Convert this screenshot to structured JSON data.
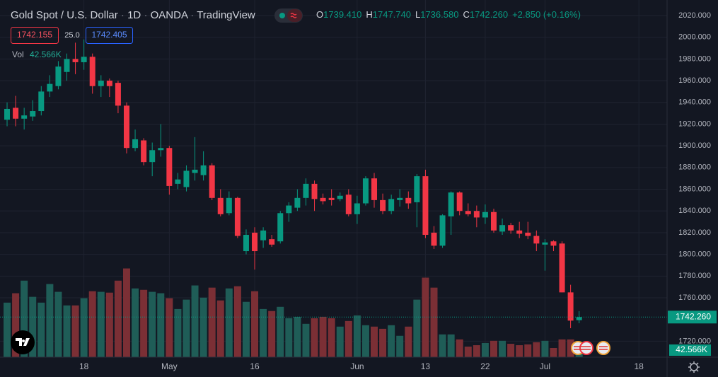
{
  "header": {
    "symbol": "Gold Spot / U.S. Dollar",
    "interval": "1D",
    "exchange": "OANDA",
    "source": "TradingView"
  },
  "ohlc_legend": [
    {
      "label": "O",
      "value": "1739.410"
    },
    {
      "label": "H",
      "value": "1747.740"
    },
    {
      "label": "L",
      "value": "1736.580"
    },
    {
      "label": "C",
      "value": "1742.260"
    }
  ],
  "change": "+2.850 (+0.16%)",
  "quote": {
    "bid": "1742.155",
    "spread": "25.0",
    "ask": "1742.405"
  },
  "volume_legend": {
    "label": "Vol",
    "value": "42.566K"
  },
  "chart_data": {
    "type": "candlestick",
    "up_color": "#089981",
    "down_color": "#f23645",
    "volume_up_color": "#1f5d57",
    "volume_down_color": "#7b2f35",
    "open": [
      1924,
      1935,
      1925,
      1927,
      1932,
      1950,
      1955,
      1968,
      1980,
      1977,
      1982,
      1955,
      1960,
      1958,
      1937,
      1898,
      1905,
      1885,
      1896,
      1898,
      1865,
      1862,
      1875,
      1873,
      1882,
      1852,
      1838,
      1852,
      1803,
      1820,
      1813,
      1814,
      1812,
      1838,
      1843,
      1852,
      1865,
      1852,
      1852,
      1851,
      1855,
      1837,
      1847,
      1870,
      1850,
      1840,
      1850,
      1852,
      1848,
      1872,
      1820,
      1808,
      1835,
      1857,
      1840,
      1840,
      1834,
      1839,
      1821,
      1827,
      1822,
      1820,
      1817,
      1809,
      1812,
      1810,
      1765,
      1739.41
    ],
    "high": [
      1940,
      1946,
      1935,
      1942,
      1955,
      1965,
      1978,
      1985,
      1995,
      1998,
      1985,
      1965,
      1962,
      1960,
      1940,
      1915,
      1907,
      1903,
      1920,
      1900,
      1875,
      1882,
      1908,
      1895,
      1884,
      1860,
      1858,
      1853,
      1823,
      1825,
      1825,
      1818,
      1840,
      1848,
      1860,
      1870,
      1868,
      1856,
      1860,
      1857,
      1860,
      1854,
      1872,
      1875,
      1856,
      1855,
      1860,
      1858,
      1874,
      1878,
      1826,
      1837,
      1858,
      1858,
      1847,
      1845,
      1846,
      1842,
      1833,
      1829,
      1830,
      1830,
      1822,
      1814,
      1813,
      1812,
      1772,
      1747.74
    ],
    "low": [
      1918,
      1918,
      1915,
      1923,
      1928,
      1945,
      1952,
      1960,
      1966,
      1970,
      1948,
      1945,
      1945,
      1930,
      1893,
      1895,
      1882,
      1872,
      1890,
      1855,
      1860,
      1858,
      1868,
      1868,
      1850,
      1835,
      1836,
      1815,
      1800,
      1786,
      1806,
      1807,
      1810,
      1830,
      1840,
      1845,
      1840,
      1846,
      1845,
      1849,
      1835,
      1828,
      1845,
      1843,
      1837,
      1837,
      1844,
      1842,
      1825,
      1815,
      1805,
      1806,
      1818,
      1836,
      1835,
      1825,
      1828,
      1820,
      1818,
      1819,
      1815,
      1814,
      1803,
      1785,
      1803,
      1765,
      1732,
      1736.58
    ],
    "close": [
      1934,
      1925,
      1928,
      1932,
      1950,
      1957,
      1973,
      1980,
      1977,
      1982,
      1955,
      1960,
      1955,
      1937,
      1898,
      1906,
      1885,
      1896,
      1898,
      1863,
      1869,
      1877,
      1878,
      1882,
      1852,
      1837,
      1852,
      1817,
      1818,
      1803,
      1822,
      1809,
      1838,
      1845,
      1852,
      1865,
      1851,
      1849,
      1850,
      1854,
      1837,
      1847,
      1870,
      1850,
      1840,
      1851,
      1852,
      1847,
      1872,
      1818,
      1808,
      1836,
      1857,
      1840,
      1837,
      1834,
      1839,
      1822,
      1827,
      1822,
      1819,
      1817,
      1810,
      1811,
      1808,
      1765,
      1739,
      1742.26
    ],
    "volume": [
      273000,
      320000,
      383000,
      302000,
      273000,
      366000,
      327000,
      259000,
      259000,
      295000,
      330000,
      327000,
      323000,
      383000,
      444000,
      344000,
      337000,
      327000,
      320000,
      295000,
      241000,
      288000,
      359000,
      298000,
      348000,
      284000,
      344000,
      355000,
      277000,
      330000,
      241000,
      231000,
      252000,
      195000,
      202000,
      167000,
      195000,
      202000,
      195000,
      153000,
      181000,
      209000,
      160000,
      153000,
      142000,
      160000,
      107000,
      153000,
      288000,
      398000,
      348000,
      114000,
      114000,
      89000,
      53000,
      60000,
      71000,
      82000,
      82000,
      67000,
      60000,
      64000,
      75000,
      82000,
      46000,
      89000,
      89000,
      42566
    ],
    "vlim": [
      0,
      460000
    ],
    "xlim": [
      -0.83,
      77.3
    ],
    "xticks": [
      {
        "value": 9,
        "label": "18"
      },
      {
        "value": 19,
        "label": "May"
      },
      {
        "value": 29,
        "label": "16"
      },
      {
        "value": 41,
        "label": "Jun"
      },
      {
        "value": 49,
        "label": "13"
      },
      {
        "value": 56,
        "label": "22"
      },
      {
        "value": 63,
        "label": "Jul"
      },
      {
        "value": 74,
        "label": "18"
      }
    ],
    "ylim": [
      1705.3,
      2034.3
    ],
    "yticks": [
      {
        "value": 2020,
        "label": "2020.000"
      },
      {
        "value": 2000,
        "label": "2000.000"
      },
      {
        "value": 1980,
        "label": "1980.000"
      },
      {
        "value": 1960,
        "label": "1960.000"
      },
      {
        "value": 1940,
        "label": "1940.000"
      },
      {
        "value": 1920,
        "label": "1920.000"
      },
      {
        "value": 1900,
        "label": "1900.000"
      },
      {
        "value": 1880,
        "label": "1880.000"
      },
      {
        "value": 1860,
        "label": "1860.000"
      },
      {
        "value": 1840,
        "label": "1840.000"
      },
      {
        "value": 1820,
        "label": "1820.000"
      },
      {
        "value": 1800,
        "label": "1800.000"
      },
      {
        "value": 1780,
        "label": "1780.000"
      },
      {
        "value": 1760,
        "label": "1760.000"
      },
      {
        "value": 1720,
        "label": "1720.000"
      }
    ],
    "grid": true,
    "last_price": {
      "value": 1742.26,
      "label": "1742.260"
    },
    "last_volume": {
      "value": 42566,
      "label": "42.566K"
    }
  }
}
